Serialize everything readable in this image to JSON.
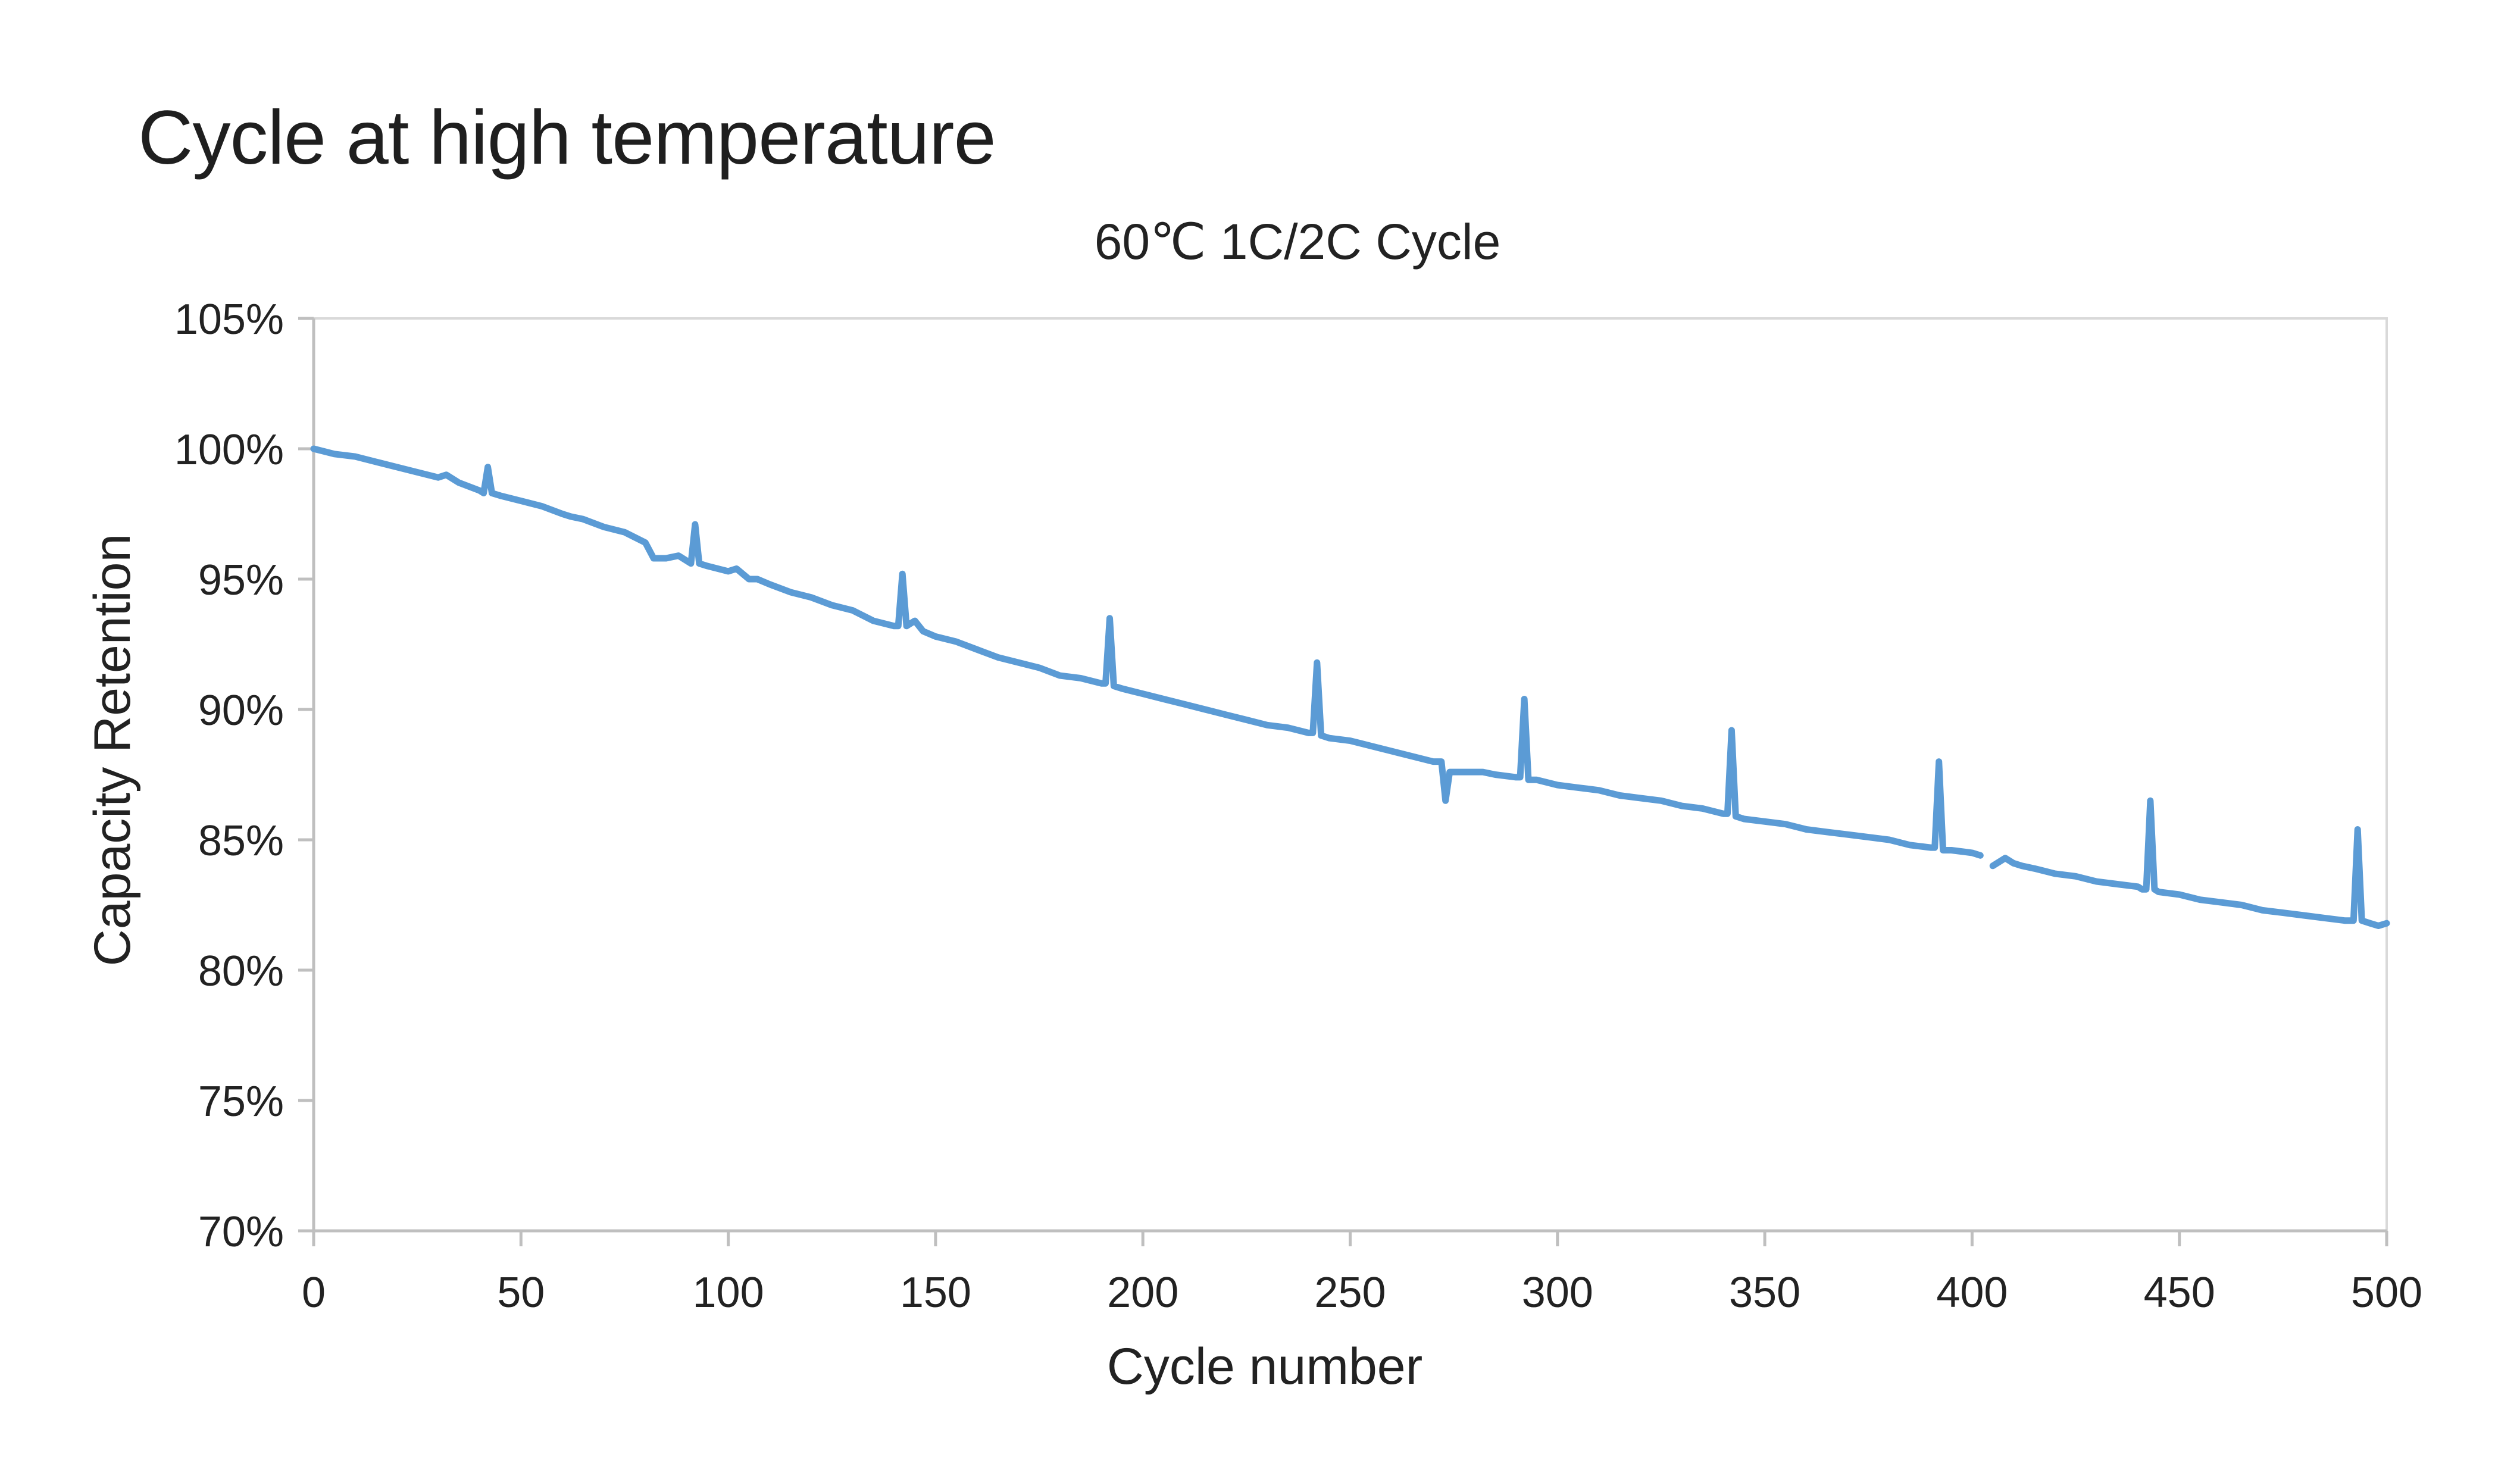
{
  "page": {
    "title": "Cycle at high temperature"
  },
  "chart_data": {
    "type": "line",
    "title": "60℃ 1C/2C Cycle",
    "xlabel": "Cycle number",
    "ylabel": "Capacity Retention",
    "xlim": [
      0,
      500
    ],
    "ylim": [
      70,
      105
    ],
    "x_ticks": [
      0,
      50,
      100,
      150,
      200,
      250,
      300,
      350,
      400,
      450,
      500
    ],
    "y_ticks": [
      70,
      75,
      80,
      85,
      90,
      95,
      100,
      105
    ],
    "x_tick_labels": [
      "0",
      "50",
      "100",
      "150",
      "200",
      "250",
      "300",
      "350",
      "400",
      "450",
      "500"
    ],
    "y_tick_labels": [
      "70%",
      "75%",
      "80%",
      "85%",
      "90%",
      "95%",
      "100%",
      "105%"
    ],
    "grid": false,
    "legend": "none",
    "colors": {
      "line": "#5b9bd5",
      "axis": "#bfbfbf",
      "text": "#222222"
    },
    "series": [
      {
        "segments": [
          [
            [
              0,
              100.0
            ],
            [
              5,
              99.8
            ],
            [
              10,
              99.7
            ],
            [
              15,
              99.5
            ],
            [
              20,
              99.3
            ],
            [
              25,
              99.1
            ],
            [
              30,
              98.9
            ],
            [
              32,
              99.0
            ],
            [
              35,
              98.7
            ],
            [
              40,
              98.4
            ],
            [
              41,
              98.3
            ],
            [
              42,
              99.3
            ],
            [
              43,
              98.3
            ],
            [
              45,
              98.2
            ],
            [
              50,
              98.0
            ],
            [
              55,
              97.8
            ],
            [
              60,
              97.5
            ],
            [
              62,
              97.4
            ],
            [
              65,
              97.3
            ],
            [
              70,
              97.0
            ],
            [
              75,
              96.8
            ],
            [
              80,
              96.4
            ],
            [
              82,
              95.8
            ],
            [
              85,
              95.8
            ],
            [
              88,
              95.9
            ],
            [
              90,
              95.7
            ],
            [
              91,
              95.6
            ],
            [
              92,
              97.1
            ],
            [
              93,
              95.6
            ],
            [
              95,
              95.5
            ],
            [
              100,
              95.3
            ],
            [
              102,
              95.4
            ],
            [
              105,
              95.0
            ],
            [
              107,
              95.0
            ],
            [
              110,
              94.8
            ],
            [
              115,
              94.5
            ],
            [
              120,
              94.3
            ],
            [
              125,
              94.0
            ],
            [
              130,
              93.8
            ],
            [
              135,
              93.4
            ],
            [
              140,
              93.2
            ],
            [
              141,
              93.2
            ],
            [
              142,
              95.2
            ],
            [
              143,
              93.2
            ],
            [
              145,
              93.4
            ],
            [
              147,
              93.0
            ],
            [
              150,
              92.8
            ],
            [
              155,
              92.6
            ],
            [
              160,
              92.3
            ],
            [
              165,
              92.0
            ],
            [
              170,
              91.8
            ],
            [
              175,
              91.6
            ],
            [
              180,
              91.3
            ],
            [
              185,
              91.2
            ],
            [
              190,
              91.0
            ],
            [
              191,
              91.0
            ],
            [
              192,
              93.5
            ],
            [
              193,
              90.9
            ],
            [
              195,
              90.8
            ],
            [
              200,
              90.6
            ],
            [
              205,
              90.4
            ],
            [
              210,
              90.2
            ],
            [
              215,
              90.0
            ],
            [
              220,
              89.8
            ],
            [
              225,
              89.6
            ],
            [
              230,
              89.4
            ],
            [
              235,
              89.3
            ],
            [
              240,
              89.1
            ],
            [
              241,
              89.1
            ],
            [
              242,
              91.8
            ],
            [
              243,
              89.0
            ],
            [
              245,
              88.9
            ],
            [
              250,
              88.8
            ],
            [
              255,
              88.6
            ],
            [
              260,
              88.4
            ],
            [
              265,
              88.2
            ],
            [
              270,
              88.0
            ],
            [
              272,
              88.0
            ],
            [
              273,
              86.5
            ],
            [
              274,
              87.6
            ],
            [
              278,
              87.6
            ],
            [
              282,
              87.6
            ],
            [
              285,
              87.5
            ],
            [
              290,
              87.4
            ],
            [
              291,
              87.4
            ],
            [
              292,
              90.4
            ],
            [
              293,
              87.3
            ],
            [
              295,
              87.3
            ],
            [
              300,
              87.1
            ],
            [
              305,
              87.0
            ],
            [
              310,
              86.9
            ],
            [
              315,
              86.7
            ],
            [
              320,
              86.6
            ],
            [
              325,
              86.5
            ],
            [
              330,
              86.3
            ],
            [
              335,
              86.2
            ],
            [
              340,
              86.0
            ],
            [
              341,
              86.0
            ],
            [
              342,
              89.2
            ],
            [
              343,
              85.9
            ],
            [
              345,
              85.8
            ],
            [
              350,
              85.7
            ],
            [
              355,
              85.6
            ],
            [
              360,
              85.4
            ],
            [
              365,
              85.3
            ],
            [
              370,
              85.2
            ],
            [
              375,
              85.1
            ],
            [
              380,
              85.0
            ],
            [
              385,
              84.8
            ],
            [
              390,
              84.7
            ],
            [
              391,
              84.7
            ],
            [
              392,
              88.0
            ],
            [
              393,
              84.6
            ],
            [
              395,
              84.6
            ],
            [
              400,
              84.5
            ],
            [
              402,
              84.4
            ]
          ],
          [
            [
              405,
              84.0
            ],
            [
              408,
              84.3
            ],
            [
              410,
              84.1
            ],
            [
              412,
              84.0
            ],
            [
              415,
              83.9
            ],
            [
              420,
              83.7
            ],
            [
              425,
              83.6
            ],
            [
              430,
              83.4
            ],
            [
              435,
              83.3
            ],
            [
              440,
              83.2
            ],
            [
              441,
              83.1
            ],
            [
              442,
              83.1
            ],
            [
              443,
              86.5
            ],
            [
              444,
              83.1
            ],
            [
              445,
              83.0
            ],
            [
              450,
              82.9
            ],
            [
              455,
              82.7
            ],
            [
              460,
              82.6
            ],
            [
              465,
              82.5
            ],
            [
              470,
              82.3
            ],
            [
              475,
              82.2
            ],
            [
              480,
              82.1
            ],
            [
              485,
              82.0
            ],
            [
              490,
              81.9
            ],
            [
              492,
              81.9
            ],
            [
              493,
              85.4
            ],
            [
              494,
              81.9
            ],
            [
              496,
              81.8
            ],
            [
              498,
              81.7
            ],
            [
              500,
              81.8
            ]
          ]
        ]
      }
    ]
  }
}
